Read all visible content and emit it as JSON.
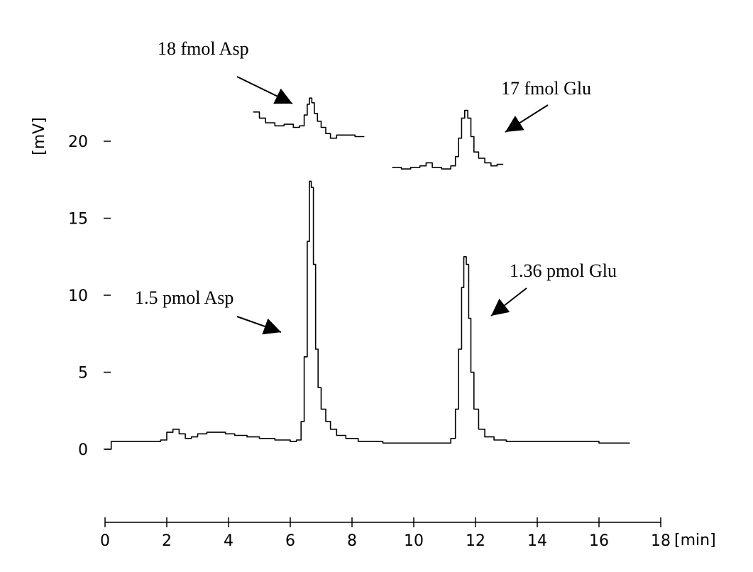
{
  "chart_data": {
    "type": "line",
    "title": "",
    "xlabel": "[min]",
    "ylabel": "[mV]",
    "xlim": [
      0,
      18
    ],
    "ylim": [
      -4,
      23
    ],
    "x_ticks": [
      0,
      2,
      4,
      6,
      8,
      10,
      12,
      14,
      16,
      18
    ],
    "y_ticks": [
      0,
      5,
      10,
      15,
      20
    ],
    "grid": false,
    "legend": "none",
    "series": [
      {
        "x": [
          0.0,
          0.2,
          0.5,
          1.0,
          1.5,
          1.8,
          2.0,
          2.2,
          2.4,
          2.6,
          2.8,
          3.0,
          3.3,
          3.6,
          3.9,
          4.2,
          4.6,
          5.0,
          5.5,
          6.0,
          6.2,
          6.35,
          6.45,
          6.55,
          6.62,
          6.68,
          6.75,
          6.82,
          6.9,
          7.0,
          7.15,
          7.3,
          7.5,
          7.8,
          8.2,
          9.0,
          10.0,
          10.5,
          11.0,
          11.2,
          11.35,
          11.45,
          11.55,
          11.62,
          11.7,
          11.78,
          11.85,
          11.95,
          12.1,
          12.3,
          12.6,
          13.0,
          14.0,
          15.0,
          16.0,
          17.0
        ],
        "y": [
          0.0,
          0.5,
          0.5,
          0.5,
          0.5,
          0.6,
          1.1,
          1.3,
          1.0,
          0.7,
          0.8,
          1.0,
          1.1,
          1.1,
          1.0,
          0.9,
          0.8,
          0.7,
          0.6,
          0.5,
          0.6,
          1.8,
          6.0,
          13.5,
          17.4,
          17.0,
          12.0,
          6.5,
          4.0,
          2.6,
          1.8,
          1.3,
          0.9,
          0.7,
          0.5,
          0.4,
          0.4,
          0.4,
          0.4,
          0.7,
          2.6,
          6.5,
          10.5,
          12.5,
          12.0,
          8.5,
          5.0,
          2.6,
          1.3,
          0.8,
          0.6,
          0.5,
          0.5,
          0.5,
          0.4,
          0.4
        ]
      },
      {
        "x": [
          4.8,
          5.0,
          5.2,
          5.5,
          5.8,
          6.1,
          6.3,
          6.45,
          6.55,
          6.62,
          6.7,
          6.78,
          6.88,
          7.0,
          7.15,
          7.3,
          7.5,
          7.8,
          8.1,
          8.4
        ],
        "y": [
          21.9,
          21.5,
          21.2,
          21.0,
          21.1,
          20.9,
          21.0,
          21.7,
          22.4,
          22.8,
          22.5,
          21.8,
          21.3,
          20.9,
          20.5,
          20.2,
          20.4,
          20.4,
          20.3,
          20.3
        ],
        "offset_note": ""
      },
      {
        "x": [
          9.3,
          9.6,
          9.9,
          10.2,
          10.4,
          10.6,
          10.9,
          11.2,
          11.35,
          11.45,
          11.55,
          11.65,
          11.75,
          11.85,
          11.95,
          12.1,
          12.3,
          12.5,
          12.7,
          12.9
        ],
        "y": [
          18.3,
          18.2,
          18.3,
          18.4,
          18.6,
          18.3,
          18.2,
          18.4,
          19.0,
          20.2,
          21.5,
          22.0,
          21.5,
          20.3,
          19.3,
          18.9,
          18.6,
          18.4,
          18.5,
          18.5
        ]
      }
    ],
    "annotations": [
      {
        "text": "18 fmol Asp"
      },
      {
        "text": "17 fmol Glu"
      },
      {
        "text": "1.5 pmol Asp"
      },
      {
        "text": "1.36 pmol Glu"
      }
    ]
  }
}
